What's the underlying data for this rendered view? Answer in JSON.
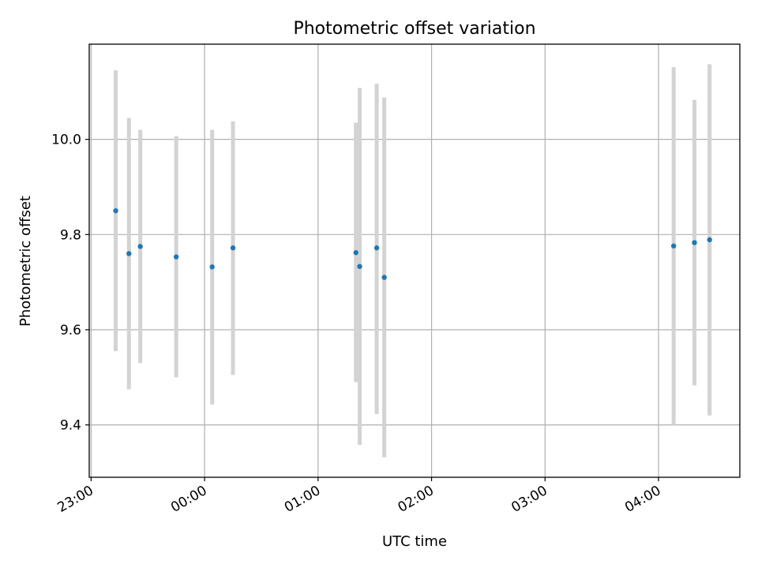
{
  "chart_data": {
    "type": "scatter",
    "title": "Photometric offset variation",
    "xlabel": "UTC time",
    "ylabel": "Photometric offset",
    "x_unit": "UTC time (HH:MM), night starting 23:00",
    "x_ticks": [
      "23:00",
      "00:00",
      "01:00",
      "02:00",
      "03:00",
      "04:00"
    ],
    "y_ticks": [
      "9.4",
      "9.6",
      "9.8",
      "10.0"
    ],
    "y_tick_values": [
      9.4,
      9.6,
      9.8,
      10.0
    ],
    "xlim": [
      "22:59",
      "04:43"
    ],
    "ylim": [
      9.29,
      10.2
    ],
    "grid": true,
    "errorbar_color": "#d3d3d3",
    "marker_color": "#1f77b4",
    "points": [
      {
        "time": "23:13",
        "y": 9.85,
        "ylow": 9.555,
        "yhigh": 10.145
      },
      {
        "time": "23:20",
        "y": 9.76,
        "ylow": 9.475,
        "yhigh": 10.045
      },
      {
        "time": "23:26",
        "y": 9.775,
        "ylow": 9.53,
        "yhigh": 10.02
      },
      {
        "time": "23:45",
        "y": 9.753,
        "ylow": 9.5,
        "yhigh": 10.007
      },
      {
        "time": "00:04",
        "y": 9.732,
        "ylow": 9.443,
        "yhigh": 10.02
      },
      {
        "time": "00:15",
        "y": 9.772,
        "ylow": 9.505,
        "yhigh": 10.038
      },
      {
        "time": "01:20",
        "y": 9.762,
        "ylow": 9.49,
        "yhigh": 10.035
      },
      {
        "time": "01:22",
        "y": 9.733,
        "ylow": 9.358,
        "yhigh": 10.108
      },
      {
        "time": "01:31",
        "y": 9.772,
        "ylow": 9.423,
        "yhigh": 10.117
      },
      {
        "time": "01:35",
        "y": 9.71,
        "ylow": 9.332,
        "yhigh": 10.088
      },
      {
        "time": "04:08",
        "y": 9.776,
        "ylow": 9.4,
        "yhigh": 10.152
      },
      {
        "time": "04:19",
        "y": 9.783,
        "ylow": 9.483,
        "yhigh": 10.083
      },
      {
        "time": "04:27",
        "y": 9.789,
        "ylow": 9.42,
        "yhigh": 10.158
      }
    ]
  }
}
